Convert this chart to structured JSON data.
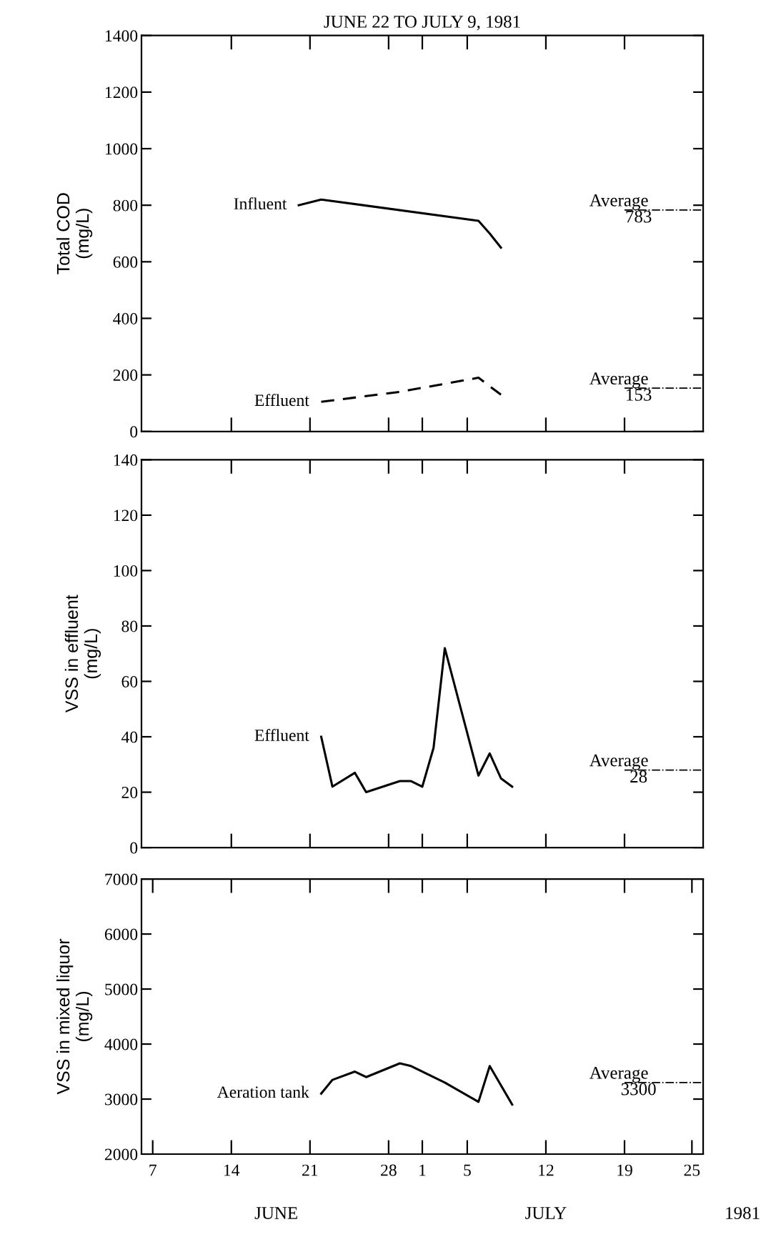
{
  "chart_data": [
    {
      "type": "line",
      "title": "JUNE 22 TO JULY 9, 1981",
      "ylabel": "Total COD\n(mg/L)",
      "xlim": [
        "1981-06-06",
        "1981-07-26"
      ],
      "ylim": [
        0,
        1400
      ],
      "yticks": [
        0,
        200,
        400,
        600,
        800,
        1000,
        1200,
        1400
      ],
      "xticks": [
        {
          "value": "1981-06-14",
          "label": null
        },
        {
          "value": "1981-06-21",
          "label": null
        },
        {
          "value": "1981-06-28",
          "label": null
        },
        {
          "value": "1981-07-01",
          "label": null
        },
        {
          "value": "1981-07-05",
          "label": null
        },
        {
          "value": "1981-07-12",
          "label": null
        },
        {
          "value": "1981-07-19",
          "label": null
        }
      ],
      "tick_labels": "y",
      "grid": false,
      "legend": false,
      "series": [
        {
          "name": "Influent",
          "color": "#000000",
          "line_style": "solid",
          "x": [
            "1981-06-20",
            "1981-06-22",
            "1981-07-06",
            "1981-07-07",
            "1981-07-08"
          ],
          "values": [
            800,
            820,
            745,
            700,
            650
          ]
        },
        {
          "name": "Effluent",
          "color": "#000000",
          "line_style": "dashed",
          "x": [
            "1981-06-22",
            "1981-06-29",
            "1981-07-06",
            "1981-07-08"
          ],
          "values": [
            105,
            140,
            190,
            130
          ]
        }
      ],
      "ref_lines": [
        {
          "axis": "y",
          "value": 783,
          "label": "Average\n783",
          "line_style": "dashdot"
        },
        {
          "axis": "y",
          "value": 153,
          "label": "Average\n153",
          "line_style": "dashdot"
        }
      ]
    },
    {
      "type": "line",
      "ylabel": "VSS in effluent\n(mg/L)",
      "xlim": [
        "1981-06-06",
        "1981-07-26"
      ],
      "ylim": [
        0,
        140
      ],
      "yticks": [
        0,
        20,
        40,
        60,
        80,
        100,
        120,
        140
      ],
      "xticks": [
        {
          "value": "1981-06-14",
          "label": null
        },
        {
          "value": "1981-06-21",
          "label": null
        },
        {
          "value": "1981-06-28",
          "label": null
        },
        {
          "value": "1981-07-01",
          "label": null
        },
        {
          "value": "1981-07-05",
          "label": null
        },
        {
          "value": "1981-07-12",
          "label": null
        },
        {
          "value": "1981-07-19",
          "label": null
        }
      ],
      "tick_labels": "y",
      "grid": false,
      "legend": false,
      "series": [
        {
          "name": "Effluent",
          "color": "#000000",
          "line_style": "solid",
          "x": [
            "1981-06-22",
            "1981-06-23",
            "1981-06-25",
            "1981-06-26",
            "1981-06-29",
            "1981-06-30",
            "1981-07-01",
            "1981-07-02",
            "1981-07-03",
            "1981-07-06",
            "1981-07-07",
            "1981-07-08",
            "1981-07-09"
          ],
          "values": [
            40,
            22,
            27,
            20,
            24,
            24,
            22,
            36,
            72,
            26,
            34,
            25,
            22
          ]
        }
      ],
      "ref_lines": [
        {
          "axis": "y",
          "value": 28,
          "label": "Average\n28",
          "line_style": "dashdot"
        }
      ]
    },
    {
      "type": "line",
      "ylabel": "VSS in mixed liquor\n(mg/L)",
      "xlim": [
        "1981-06-06",
        "1981-07-26"
      ],
      "ylim": [
        2000,
        7000
      ],
      "yticks": [
        2000,
        3000,
        4000,
        5000,
        6000,
        7000
      ],
      "xticks": [
        {
          "value": "1981-06-07",
          "label": "7"
        },
        {
          "value": "1981-06-14",
          "label": "14"
        },
        {
          "value": "1981-06-21",
          "label": "21"
        },
        {
          "value": "1981-06-28",
          "label": "28"
        },
        {
          "value": "1981-07-01",
          "label": "1"
        },
        {
          "value": "1981-07-05",
          "label": "5"
        },
        {
          "value": "1981-07-12",
          "label": "12"
        },
        {
          "value": "1981-07-19",
          "label": "19"
        },
        {
          "value": "1981-07-25",
          "label": "25"
        }
      ],
      "grid": false,
      "legend": false,
      "series": [
        {
          "name": "Aeration tank",
          "color": "#000000",
          "line_style": "solid",
          "x": [
            "1981-06-22",
            "1981-06-23",
            "1981-06-25",
            "1981-06-26",
            "1981-06-29",
            "1981-06-30",
            "1981-07-03",
            "1981-07-06",
            "1981-07-07",
            "1981-07-09"
          ],
          "values": [
            3100,
            3350,
            3500,
            3400,
            3650,
            3600,
            3300,
            2950,
            3600,
            2900
          ]
        }
      ],
      "ref_lines": [
        {
          "axis": "y",
          "value": 3300,
          "label": "Average\n3300",
          "line_style": "dashdot"
        }
      ],
      "annotations": [
        "JUNE",
        "JULY",
        "1981"
      ]
    }
  ]
}
